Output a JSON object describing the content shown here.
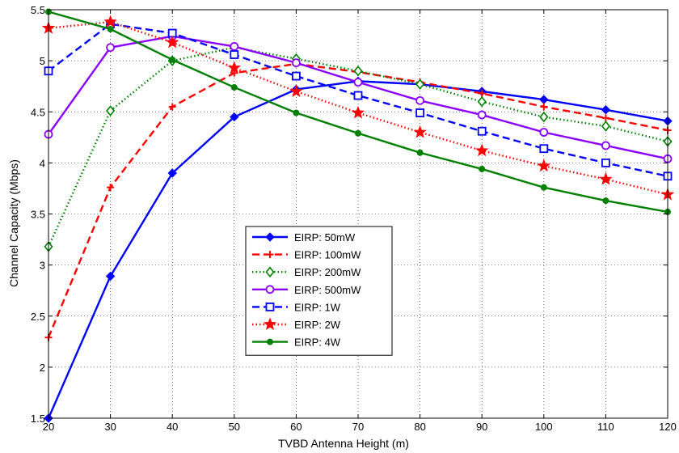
{
  "chart_data": {
    "type": "line",
    "xlabel": "TVBD Antenna Height (m)",
    "ylabel": "Channel Capacity (Mbps)",
    "xlim": [
      20,
      120
    ],
    "ylim": [
      1.5,
      5.5
    ],
    "xticks": [
      20,
      30,
      40,
      50,
      60,
      70,
      80,
      90,
      100,
      110,
      120
    ],
    "yticks": [
      1.5,
      2,
      2.5,
      3,
      3.5,
      4,
      4.5,
      5,
      5.5
    ],
    "ytick_labels": [
      "1.5",
      "2",
      "2.5",
      "3",
      "3.5",
      "4",
      "4.5",
      "5",
      "5.5"
    ],
    "grid": true,
    "legend_position": "center",
    "x": [
      20,
      30,
      40,
      50,
      60,
      70,
      80,
      90,
      100,
      110,
      120
    ],
    "series": [
      {
        "name": "EIRP: 50mW",
        "color": "#0000ff",
        "dash": "solid",
        "marker": "diamond-filled",
        "values": [
          1.5,
          2.89,
          3.9,
          4.45,
          4.72,
          4.8,
          4.77,
          4.7,
          4.62,
          4.52,
          4.41
        ]
      },
      {
        "name": "EIRP: 100mW",
        "color": "#ff0000",
        "dash": "dashed",
        "marker": "plus",
        "values": [
          2.29,
          3.76,
          4.55,
          4.88,
          4.97,
          4.89,
          4.79,
          4.68,
          4.55,
          4.44,
          4.32
        ]
      },
      {
        "name": "EIRP: 200mW",
        "color": "#008000",
        "dash": "dotted",
        "marker": "diamond-open",
        "values": [
          3.18,
          4.51,
          5.0,
          5.13,
          5.02,
          4.9,
          4.77,
          4.6,
          4.45,
          4.36,
          4.21
        ]
      },
      {
        "name": "EIRP: 500mW",
        "color": "#8b00ff",
        "dash": "solid",
        "marker": "circle-open",
        "values": [
          4.28,
          5.13,
          5.24,
          5.14,
          4.98,
          4.79,
          4.61,
          4.47,
          4.3,
          4.17,
          4.04
        ]
      },
      {
        "name": "EIRP: 1W",
        "color": "#0000ff",
        "dash": "dashed",
        "marker": "square-open",
        "values": [
          4.9,
          5.36,
          5.27,
          5.06,
          4.85,
          4.66,
          4.49,
          4.31,
          4.14,
          4.0,
          3.87
        ]
      },
      {
        "name": "EIRP: 2W",
        "color": "#ff0000",
        "dash": "dotted",
        "marker": "star",
        "values": [
          5.32,
          5.38,
          5.18,
          4.93,
          4.7,
          4.49,
          4.3,
          4.12,
          3.97,
          3.84,
          3.69
        ]
      },
      {
        "name": "EIRP: 4W",
        "color": "#008000",
        "dash": "solid",
        "marker": "dot",
        "values": [
          5.48,
          5.31,
          5.01,
          4.74,
          4.49,
          4.29,
          4.1,
          3.94,
          3.76,
          3.63,
          3.52
        ]
      }
    ]
  }
}
